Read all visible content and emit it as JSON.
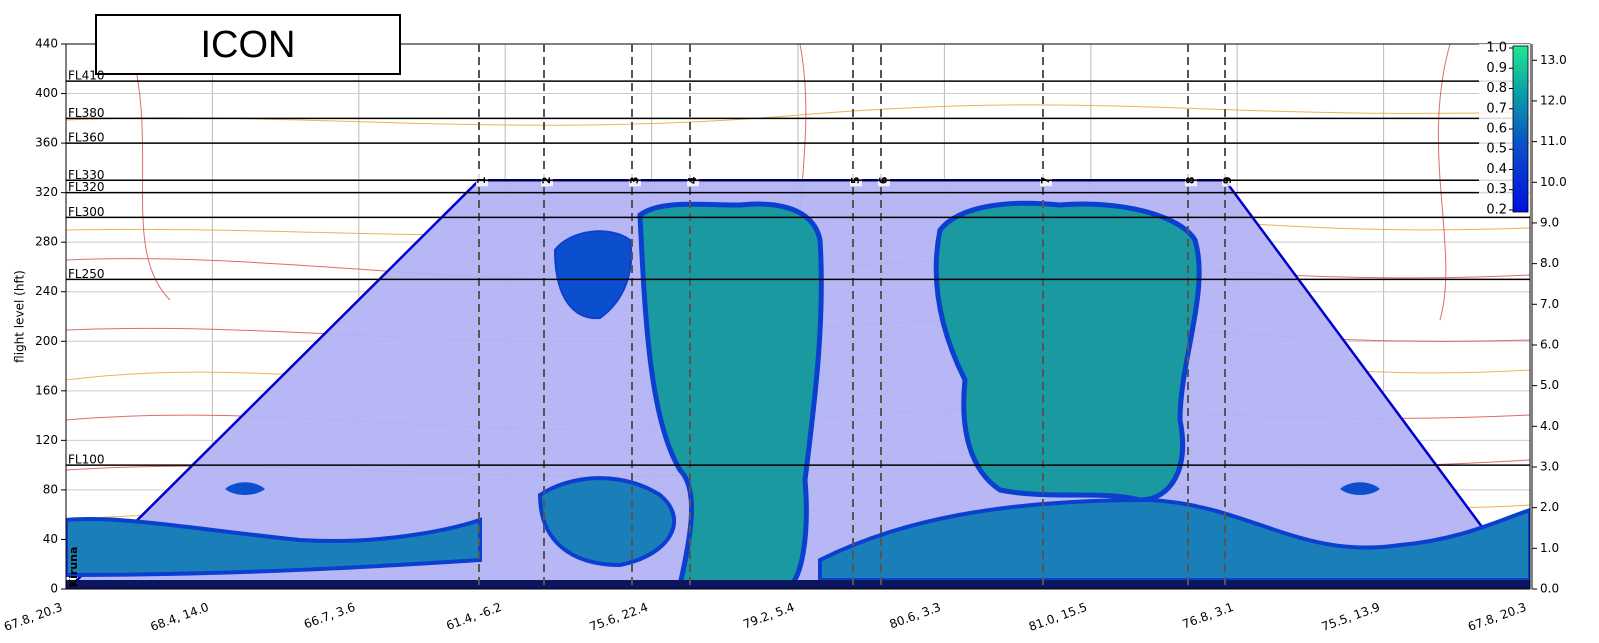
{
  "chart_data": {
    "type": "cross-section",
    "title": "ICON",
    "y_label": "flight level (hft)",
    "ylim": [
      0,
      440
    ],
    "yticks": [
      0,
      40,
      80,
      120,
      160,
      200,
      240,
      280,
      320,
      360,
      400,
      440
    ],
    "grid": true,
    "x_tick_labels": [
      "67.8, 20.3",
      "68.4, 14.0",
      "66.7, 3.6",
      "61.4, -6.2",
      "75.6, 22.4",
      "79.2, 5.4",
      "80.6, 3.3",
      "81.0, 15.5",
      "76.8, 3.1",
      "75.5, 13.9",
      "67.8, 20.3"
    ],
    "flight_levels": [
      {
        "value": 100,
        "label": "FL100"
      },
      {
        "value": 250,
        "label": "FL250"
      },
      {
        "value": 300,
        "label": "FL300"
      },
      {
        "value": 320,
        "label": "FL320"
      },
      {
        "value": 330,
        "label": "FL330"
      },
      {
        "value": 360,
        "label": "FL360"
      },
      {
        "value": 380,
        "label": "FL380"
      },
      {
        "value": 410,
        "label": "FL410"
      }
    ],
    "route_labels": [
      "Kiruna",
      "1",
      "2",
      "3",
      "4",
      "5",
      "6",
      "7",
      "8",
      "9",
      null
    ],
    "route_altitudes": [
      0,
      330,
      330,
      330,
      330,
      330,
      330,
      330,
      330,
      330,
      0
    ],
    "route_color": "#0000cc",
    "colorbar": {
      "lim": [
        0.19,
        1.01
      ],
      "ticks": [
        {
          "value": 0.2,
          "label": "0.2"
        },
        {
          "value": 0.3,
          "label": "0.3"
        },
        {
          "value": 0.4,
          "label": "0.4"
        },
        {
          "value": 0.5,
          "label": "0.5"
        },
        {
          "value": 0.6,
          "label": "0.6"
        },
        {
          "value": 0.7,
          "label": "0.7"
        },
        {
          "value": 0.8,
          "label": "0.8"
        },
        {
          "value": 0.9,
          "label": "0.9"
        },
        {
          "value": 1.0,
          "label": "1.0"
        }
      ]
    },
    "y2lim": [
      0,
      13.4
    ],
    "y2ticks": [
      {
        "value": 0,
        "label": "0.0"
      },
      {
        "value": 1,
        "label": "1.0"
      },
      {
        "value": 2,
        "label": "2.0"
      },
      {
        "value": 3,
        "label": "3.0"
      },
      {
        "value": 4,
        "label": "4.0"
      },
      {
        "value": 5,
        "label": "5.0"
      },
      {
        "value": 6,
        "label": "6.0"
      },
      {
        "value": 7,
        "label": "7.0"
      },
      {
        "value": 8,
        "label": "8.0"
      },
      {
        "value": 9,
        "label": "9.0"
      },
      {
        "value": 10,
        "label": "10.0"
      },
      {
        "value": 11,
        "label": "11.0"
      },
      {
        "value": 12,
        "label": "12.0"
      },
      {
        "value": 13,
        "label": "13.0"
      }
    ]
  }
}
